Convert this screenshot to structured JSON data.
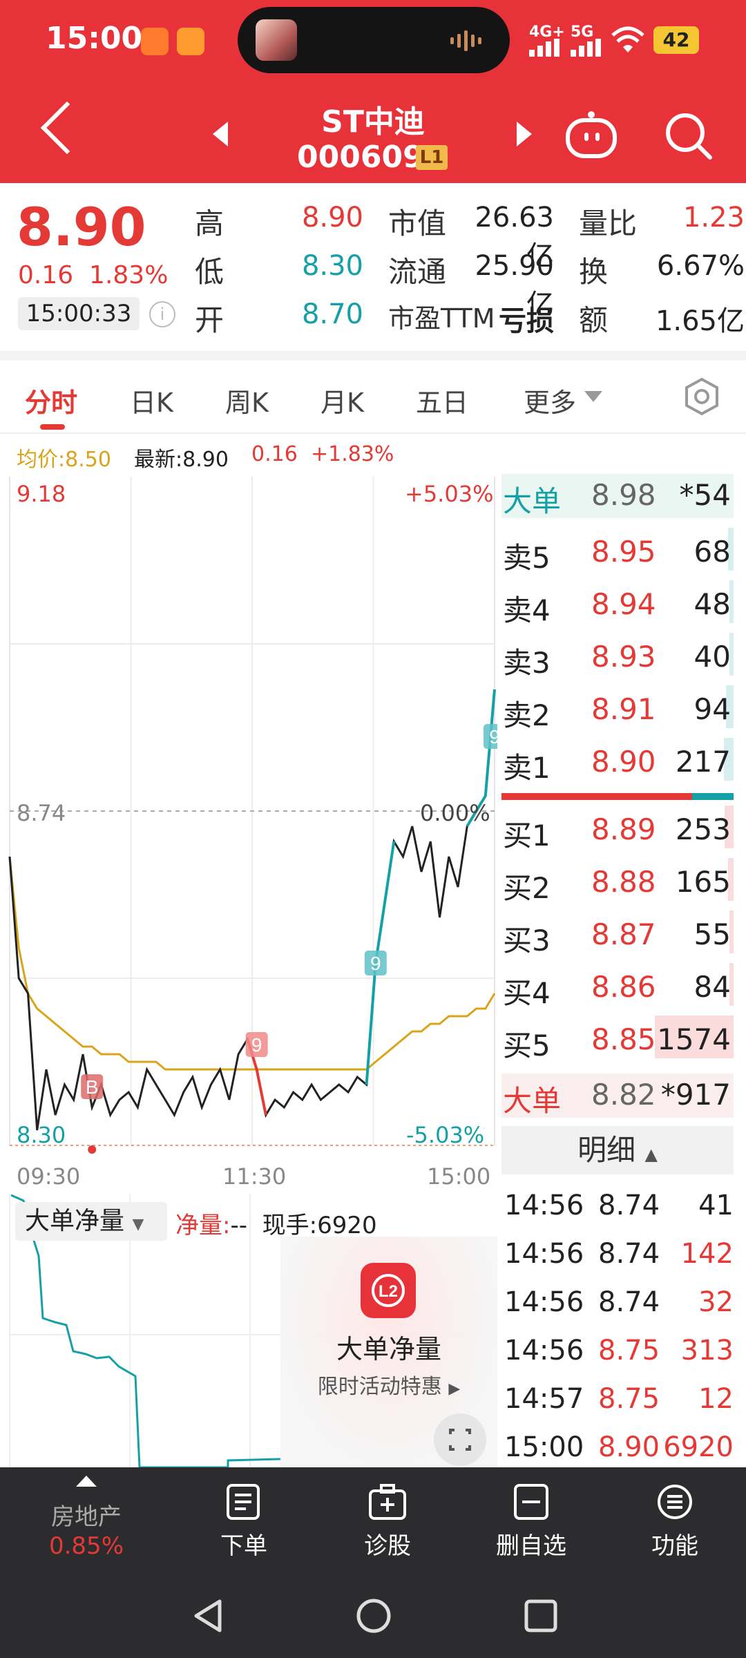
{
  "status_bar": {
    "time": "15:00",
    "network_1": "4G+",
    "network_2": "5G",
    "battery": "42"
  },
  "header": {
    "title": "ST中迪",
    "code": "000609",
    "level_badge": "L1"
  },
  "quote": {
    "price": "8.90",
    "change": "0.16",
    "change_pct": "1.83%",
    "time": "15:00:33",
    "high_label": "高",
    "high": "8.90",
    "low_label": "低",
    "low": "8.30",
    "open_label": "开",
    "open": "8.70",
    "mktcap_label": "市值",
    "mktcap": "26.63亿",
    "float_label": "流通",
    "float": "25.90亿",
    "pe_label": "市盈TTM",
    "pe": "亏损",
    "vol_ratio_label": "量比",
    "vol_ratio": "1.23",
    "turnover_label": "换",
    "turnover": "6.67%",
    "amount_label": "额",
    "amount": "1.65亿"
  },
  "tabs": [
    "分时",
    "日K",
    "周K",
    "月K",
    "五日",
    "更多"
  ],
  "summary_row": {
    "avg_label": "均价:8.50",
    "latest_label": "最新:8.90",
    "change": "0.16",
    "change_pct": "+1.83%"
  },
  "chart_data": {
    "type": "line",
    "y_max_label": "9.18",
    "y_mid_label": "8.74",
    "y_min_label": "8.30",
    "pct_max_label": "+5.03%",
    "pct_mid_label": "0.00%",
    "pct_min_label": "-5.03%",
    "x_labels": [
      "09:30",
      "11:30",
      "15:00"
    ],
    "ylim": [
      8.3,
      9.18
    ],
    "prev_close": 8.74,
    "price_series": [
      8.68,
      8.52,
      8.5,
      8.32,
      8.4,
      8.34,
      8.38,
      8.36,
      8.42,
      8.35,
      8.38,
      8.34,
      8.36,
      8.37,
      8.35,
      8.4,
      8.38,
      8.36,
      8.34,
      8.37,
      8.39,
      8.35,
      8.38,
      8.4,
      8.36,
      8.42,
      8.44,
      8.4,
      8.34,
      8.36,
      8.35,
      8.37,
      8.36,
      8.38,
      8.36,
      8.37,
      8.38,
      8.37,
      8.39,
      8.38,
      8.54,
      8.62,
      8.7,
      8.68,
      8.72,
      8.66,
      8.7,
      8.6,
      8.68,
      8.64,
      8.72,
      8.74,
      8.76,
      8.9
    ],
    "avg_series": [
      8.68,
      8.56,
      8.5,
      8.48,
      8.47,
      8.46,
      8.45,
      8.44,
      8.43,
      8.43,
      8.42,
      8.42,
      8.42,
      8.41,
      8.41,
      8.41,
      8.41,
      8.4,
      8.4,
      8.4,
      8.4,
      8.4,
      8.4,
      8.4,
      8.4,
      8.4,
      8.4,
      8.4,
      8.4,
      8.4,
      8.4,
      8.4,
      8.4,
      8.4,
      8.4,
      8.4,
      8.4,
      8.4,
      8.4,
      8.4,
      8.41,
      8.42,
      8.43,
      8.44,
      8.45,
      8.45,
      8.46,
      8.46,
      8.47,
      8.47,
      8.47,
      8.48,
      8.48,
      8.5
    ],
    "markers": [
      "B",
      "9",
      "9",
      "9"
    ]
  },
  "order_book": {
    "big_sell_label": "大单",
    "big_sell_price": "8.98",
    "big_sell_vol": "*54",
    "asks": [
      {
        "label": "卖5",
        "price": "8.95",
        "vol": "68"
      },
      {
        "label": "卖4",
        "price": "8.94",
        "vol": "48"
      },
      {
        "label": "卖3",
        "price": "8.93",
        "vol": "40"
      },
      {
        "label": "卖2",
        "price": "8.91",
        "vol": "94"
      },
      {
        "label": "卖1",
        "price": "8.90",
        "vol": "217"
      }
    ],
    "bids": [
      {
        "label": "买1",
        "price": "8.89",
        "vol": "253"
      },
      {
        "label": "买2",
        "price": "8.88",
        "vol": "165"
      },
      {
        "label": "买3",
        "price": "8.87",
        "vol": "55"
      },
      {
        "label": "买4",
        "price": "8.86",
        "vol": "84"
      },
      {
        "label": "买5",
        "price": "8.85",
        "vol": "1574"
      }
    ],
    "big_buy_label": "大单",
    "big_buy_price": "8.82",
    "big_buy_vol": "*917",
    "detail_label": "明细"
  },
  "ticks": [
    {
      "time": "14:56",
      "price": "8.74",
      "vol": "41",
      "side": "dark"
    },
    {
      "time": "14:56",
      "price": "8.74",
      "vol": "142",
      "side": "red"
    },
    {
      "time": "14:56",
      "price": "8.74",
      "vol": "32",
      "side": "red"
    },
    {
      "time": "14:56",
      "price": "8.75",
      "vol": "313",
      "side": "red"
    },
    {
      "time": "14:57",
      "price": "8.75",
      "vol": "12",
      "side": "red"
    },
    {
      "time": "15:00",
      "price": "8.90",
      "vol": "6920",
      "side": "red"
    }
  ],
  "sub_chart": {
    "selector": "大单净量",
    "net_label": "净量:",
    "net_value": "-- ",
    "hand_label": "现手:6920",
    "promo_title": "大单净量",
    "promo_sub": "限时活动特惠",
    "promo_badge": "L2"
  },
  "toolbar": {
    "sector_name": "房地产",
    "sector_pct": "0.85%",
    "items": [
      "下单",
      "诊股",
      "删自选",
      "功能"
    ]
  }
}
